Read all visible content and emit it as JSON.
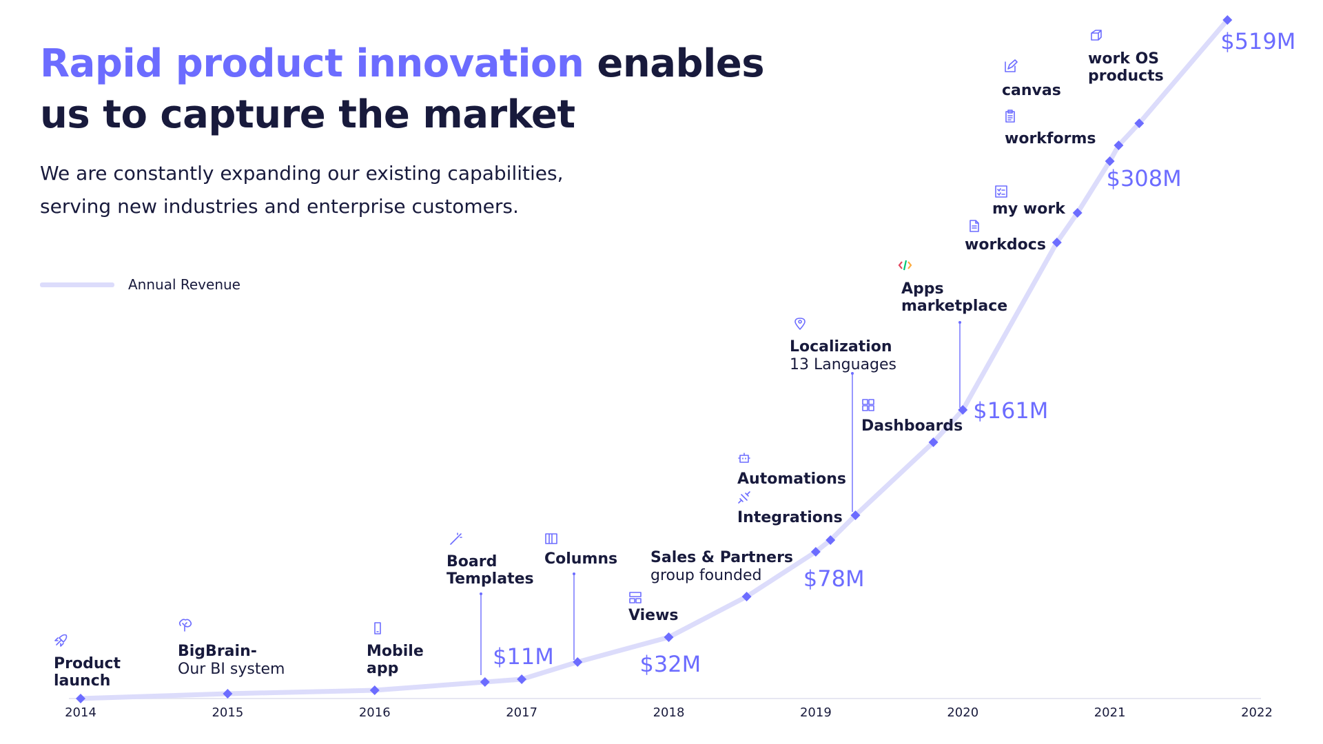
{
  "header": {
    "title_accent": "Rapid product innovation",
    "title_rest": " enables us to capture the market",
    "subtitle_line1": "We are constantly expanding our existing capabilities,",
    "subtitle_line2": "serving new industries and enterprise customers."
  },
  "colors": {
    "accent": "#6c6cff",
    "dark": "#181a3c",
    "line": "#dcdcfb",
    "marker": "#6c6cff"
  },
  "chart_data": {
    "type": "line",
    "legend": {
      "label": "Annual Revenue",
      "placement": "top-left"
    },
    "x_ticks": [
      "2014",
      "2015",
      "2016",
      "2017",
      "2018",
      "2019",
      "2020",
      "2021",
      "2022"
    ],
    "xlim": [
      2014,
      2022
    ],
    "y_scale": "nonlinear",
    "grid": false,
    "series": [
      {
        "name": "Annual Revenue",
        "points": [
          {
            "x": 2014.0,
            "y": 0
          },
          {
            "x": 2015.0,
            "y": 1
          },
          {
            "x": 2016.0,
            "y": 3
          },
          {
            "x": 2016.75,
            "y": 8
          },
          {
            "x": 2017.0,
            "y": 11
          },
          {
            "x": 2017.38,
            "y": 17
          },
          {
            "x": 2018.0,
            "y": 32
          },
          {
            "x": 2018.53,
            "y": 50
          },
          {
            "x": 2019.0,
            "y": 78
          },
          {
            "x": 2019.1,
            "y": 85
          },
          {
            "x": 2019.27,
            "y": 100
          },
          {
            "x": 2019.8,
            "y": 140
          },
          {
            "x": 2020.0,
            "y": 161
          },
          {
            "x": 2020.64,
            "y": 230
          },
          {
            "x": 2020.78,
            "y": 260
          },
          {
            "x": 2021.0,
            "y": 308
          },
          {
            "x": 2021.06,
            "y": 330
          },
          {
            "x": 2021.2,
            "y": 370
          },
          {
            "x": 2021.8,
            "y": 519
          }
        ]
      }
    ],
    "value_labels": [
      {
        "x": 2017.0,
        "text": "$11M"
      },
      {
        "x": 2018.0,
        "text": "$32M"
      },
      {
        "x": 2019.0,
        "text": "$78M"
      },
      {
        "x": 2020.0,
        "text": "$161M"
      },
      {
        "x": 2021.0,
        "text": "$308M"
      },
      {
        "x": 2021.8,
        "text": "$519M"
      }
    ],
    "milestones": [
      {
        "x": 2014.0,
        "icon": "rocket-icon",
        "title": "Product launch",
        "subtitle": ""
      },
      {
        "x": 2015.0,
        "icon": "brain-icon",
        "title": "BigBrain-",
        "subtitle": "Our BI system"
      },
      {
        "x": 2016.0,
        "icon": "mobile-icon",
        "title": "Mobile app",
        "subtitle": ""
      },
      {
        "x": 2016.75,
        "icon": "magic-wand-icon",
        "title": "Board Templates",
        "subtitle": ""
      },
      {
        "x": 2017.38,
        "icon": "columns-icon",
        "title": "Columns",
        "subtitle": ""
      },
      {
        "x": 2018.0,
        "icon": "views-icon",
        "title": "Views",
        "subtitle": ""
      },
      {
        "x": 2018.53,
        "icon": "",
        "title": "Sales & Partners",
        "subtitle": "group founded"
      },
      {
        "x": 2019.1,
        "icon": "robot-icon",
        "title": "Automations",
        "subtitle": ""
      },
      {
        "x": 2019.1,
        "icon": "plug-icon",
        "title": "Integrations",
        "subtitle": ""
      },
      {
        "x": 2019.27,
        "icon": "pin-icon",
        "title": "Localization",
        "subtitle": "13 Languages"
      },
      {
        "x": 2019.8,
        "icon": "dashboard-grid-icon",
        "title": "Dashboards",
        "subtitle": ""
      },
      {
        "x": 2020.0,
        "icon": "code-icon",
        "title": "Apps marketplace",
        "subtitle": ""
      },
      {
        "x": 2020.64,
        "icon": "document-icon",
        "title": "workdocs",
        "subtitle": ""
      },
      {
        "x": 2020.78,
        "icon": "checklist-icon",
        "title": "my work",
        "subtitle": ""
      },
      {
        "x": 2021.06,
        "icon": "clipboard-icon",
        "title": "workforms",
        "subtitle": ""
      },
      {
        "x": 2021.06,
        "icon": "pencil-icon",
        "title": "canvas",
        "subtitle": ""
      },
      {
        "x": 2021.2,
        "icon": "cube-icon",
        "title": "work OS products",
        "subtitle": ""
      }
    ]
  }
}
